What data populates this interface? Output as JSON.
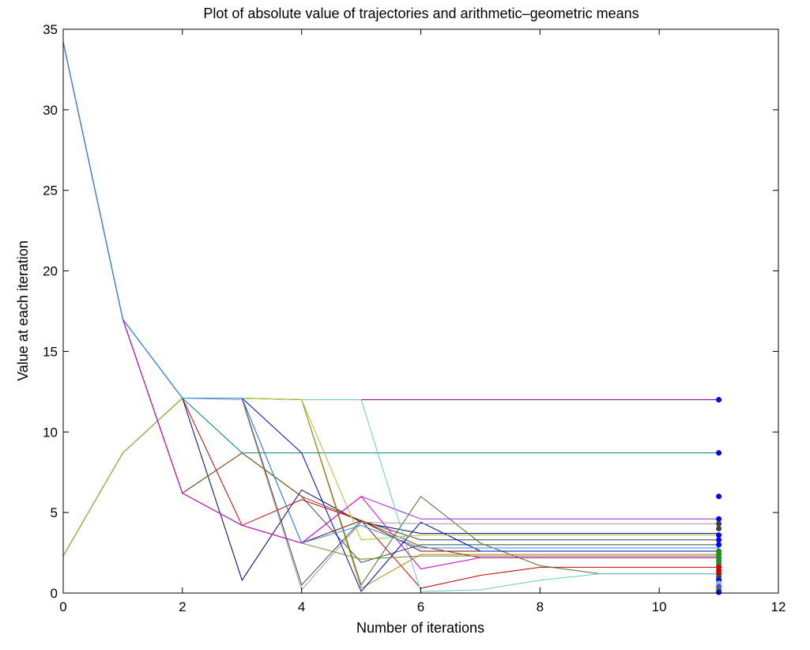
{
  "chart_data": {
    "type": "line",
    "title": "Plot of absolute value of trajectories and arithmetic–geometric means",
    "xlabel": "Number of iterations",
    "ylabel": "Value at each iteration",
    "xlim": [
      0,
      12
    ],
    "ylim": [
      0,
      35
    ],
    "xticks": [
      0,
      2,
      4,
      6,
      8,
      10,
      12
    ],
    "yticks": [
      0,
      5,
      10,
      15,
      20,
      25,
      30,
      35
    ],
    "grid": false,
    "legend": "none",
    "series": [
      {
        "color": "#800080",
        "x": [
          0,
          1,
          2,
          3,
          4,
          5,
          6,
          7,
          8,
          9,
          10,
          11
        ],
        "y": [
          34.2,
          17.0,
          12.1,
          12.1,
          12.0,
          12.0,
          12.0,
          12.0,
          12.0,
          12.0,
          12.0,
          12.0
        ]
      },
      {
        "color": "#008080",
        "x": [
          0,
          1,
          2,
          3,
          4,
          5,
          6,
          7,
          8,
          9,
          10,
          11
        ],
        "y": [
          2.3,
          8.7,
          12.1,
          8.7,
          8.7,
          8.7,
          8.7,
          8.7,
          8.7,
          8.7,
          8.7,
          8.7
        ]
      },
      {
        "color": "#000080",
        "x": [
          0,
          1,
          2,
          3,
          4,
          5,
          6,
          7,
          8,
          9,
          10,
          11
        ],
        "y": [
          34.2,
          17.0,
          12.1,
          0.8,
          6.4,
          4.4,
          3.7,
          3.7,
          3.7,
          3.7,
          3.7,
          3.7
        ]
      },
      {
        "color": "#404040",
        "x": [
          0,
          1,
          2,
          3,
          4,
          5,
          6,
          7,
          8,
          9,
          10,
          11
        ],
        "y": [
          2.3,
          8.7,
          12.1,
          12.1,
          0.5,
          4.5,
          3.3,
          3.3,
          3.3,
          3.3,
          3.3,
          3.3
        ]
      },
      {
        "color": "#2f4f4f",
        "x": [
          0,
          1,
          2,
          3,
          4,
          5,
          6,
          7,
          8,
          9,
          10,
          11
        ],
        "y": [
          34.2,
          17.0,
          6.2,
          8.7,
          6.0,
          1.9,
          3.0,
          3.0,
          3.0,
          3.0,
          3.0,
          3.0
        ]
      },
      {
        "color": "#a020f0",
        "x": [
          0,
          1,
          2,
          3,
          4,
          5,
          6,
          7,
          8,
          9,
          10,
          11
        ],
        "y": [
          34.2,
          17.0,
          6.2,
          4.2,
          3.1,
          6.0,
          4.6,
          4.6,
          4.6,
          4.6,
          4.6,
          4.6
        ]
      },
      {
        "color": "#cc0000",
        "x": [
          0,
          1,
          2,
          3,
          4,
          5,
          6,
          7,
          8,
          9,
          10,
          11
        ],
        "y": [
          2.3,
          8.7,
          12.1,
          4.2,
          5.8,
          4.5,
          0.3,
          1.1,
          1.6,
          1.6,
          1.6,
          1.6
        ]
      },
      {
        "color": "#800000",
        "x": [
          0,
          1,
          2,
          3,
          4,
          5,
          6,
          7,
          8,
          9,
          10,
          11
        ],
        "y": [
          2.3,
          8.7,
          12.1,
          12.1,
          3.1,
          4.5,
          2.6,
          2.6,
          2.6,
          2.6,
          2.6,
          2.6
        ]
      },
      {
        "color": "#556b2f",
        "x": [
          0,
          1,
          2,
          3,
          4,
          5,
          6,
          7,
          8,
          9,
          10,
          11
        ],
        "y": [
          2.3,
          8.7,
          12.1,
          12.1,
          12.0,
          0.5,
          6.0,
          3.1,
          1.7,
          1.2,
          1.2,
          1.2
        ]
      },
      {
        "color": "#66cccc",
        "x": [
          0,
          1,
          2,
          3,
          4,
          5,
          6,
          7,
          8,
          9,
          10,
          11
        ],
        "y": [
          2.3,
          8.7,
          12.1,
          12.1,
          12.0,
          12.0,
          0.1,
          0.2,
          0.8,
          1.2,
          1.2,
          1.2
        ]
      },
      {
        "color": "#b8860b",
        "x": [
          0,
          1,
          2,
          3,
          4,
          5,
          6,
          7,
          8,
          9,
          10,
          11
        ],
        "y": [
          2.3,
          8.7,
          12.1,
          12.1,
          12.0,
          0.3,
          2.4,
          2.4,
          2.4,
          2.4,
          2.4,
          2.4
        ]
      },
      {
        "color": "#0000cc",
        "x": [
          0,
          1,
          2,
          3,
          4,
          5,
          6,
          7,
          8,
          9,
          10,
          11
        ],
        "y": [
          2.3,
          8.7,
          12.1,
          12.1,
          8.7,
          0.1,
          4.4,
          2.6,
          2.6,
          2.6,
          2.6,
          2.6
        ]
      },
      {
        "color": "#8b4513",
        "x": [
          0,
          1,
          2,
          3,
          4,
          5,
          6,
          7,
          8,
          9,
          10,
          11
        ],
        "y": [
          34.2,
          17.0,
          6.2,
          8.7,
          6.0,
          4.5,
          2.9,
          2.2,
          2.2,
          2.2,
          2.2,
          2.2
        ]
      },
      {
        "color": "#6b8e23",
        "x": [
          0,
          1,
          2,
          3,
          4,
          5,
          6,
          7,
          8,
          9,
          10,
          11
        ],
        "y": [
          34.2,
          17.0,
          6.2,
          4.2,
          3.1,
          2.1,
          2.3,
          2.3,
          2.3,
          2.3,
          2.3,
          2.3
        ]
      },
      {
        "color": "#999999",
        "x": [
          0,
          1,
          2,
          3,
          4,
          5,
          6,
          7,
          8,
          9,
          10,
          11
        ],
        "y": [
          2.3,
          8.7,
          12.1,
          12.0,
          0.2,
          4.4,
          4.3,
          4.3,
          4.3,
          4.3,
          4.3,
          4.3
        ]
      },
      {
        "color": "#9acd32",
        "x": [
          0,
          1,
          2,
          3,
          4,
          5,
          6,
          7,
          8,
          9,
          10,
          11
        ],
        "y": [
          2.3,
          8.7,
          12.1,
          12.1,
          12.0,
          3.3,
          3.6,
          3.6,
          3.6,
          3.6,
          3.6,
          3.6
        ]
      },
      {
        "color": "#cc00cc",
        "x": [
          0,
          1,
          2,
          3,
          4,
          5,
          6,
          7,
          8,
          9,
          10,
          11
        ],
        "y": [
          34.2,
          17.0,
          6.2,
          4.2,
          3.1,
          6.0,
          1.5,
          2.2,
          2.2,
          2.2,
          2.2,
          2.2
        ]
      },
      {
        "color": "#1e90ff",
        "x": [
          0,
          1,
          2,
          3,
          4,
          5,
          6,
          7,
          8,
          9,
          10,
          11
        ],
        "y": [
          34.2,
          17.0,
          12.1,
          12.1,
          3.1,
          4.2,
          2.8,
          2.8,
          2.8,
          2.8,
          2.8,
          2.8
        ]
      }
    ],
    "endpoint_markers": {
      "x": 11,
      "points": [
        {
          "y": 12.0,
          "color": "#0000ff"
        },
        {
          "y": 8.7,
          "color": "#0000ff"
        },
        {
          "y": 6.0,
          "color": "#0000ff"
        },
        {
          "y": 4.6,
          "color": "#0000ff"
        },
        {
          "y": 4.3,
          "color": "#404040"
        },
        {
          "y": 4.0,
          "color": "#404040"
        },
        {
          "y": 3.6,
          "color": "#0000ff"
        },
        {
          "y": 3.3,
          "color": "#0000ff"
        },
        {
          "y": 3.0,
          "color": "#0000ff"
        },
        {
          "y": 2.6,
          "color": "#228b22"
        },
        {
          "y": 2.4,
          "color": "#228b22"
        },
        {
          "y": 2.2,
          "color": "#228b22"
        },
        {
          "y": 2.0,
          "color": "#228b22"
        },
        {
          "y": 1.8,
          "color": "#228b22"
        },
        {
          "y": 1.6,
          "color": "#cc0000"
        },
        {
          "y": 1.4,
          "color": "#cc0000"
        },
        {
          "y": 1.2,
          "color": "#cc0000"
        },
        {
          "y": 1.0,
          "color": "#2f4f4f"
        },
        {
          "y": 0.8,
          "color": "#0000ff"
        },
        {
          "y": 0.6,
          "color": "#66cccc"
        },
        {
          "y": 0.4,
          "color": "#a020f0"
        },
        {
          "y": 0.2,
          "color": "#228b22"
        },
        {
          "y": 0.05,
          "color": "#0000ff"
        }
      ]
    }
  }
}
